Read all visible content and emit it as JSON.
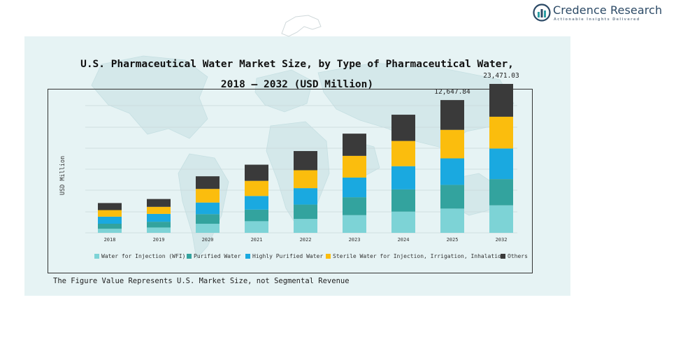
{
  "brand": {
    "name": "Credence Research",
    "tagline": "Actionable Insights Delivered"
  },
  "chart_data": {
    "type": "bar",
    "stacked": true,
    "title_line1": "U.S. Pharmaceutical Water Market Size, by Type of Pharmaceutical Water,",
    "title_line2": "2018 – 2032 (USD Million)",
    "ylabel": "USD Million",
    "xlabel": "",
    "categories": [
      "2018",
      "2019",
      "2020",
      "2021",
      "2022",
      "2023",
      "2024",
      "2025",
      "2032"
    ],
    "series": [
      {
        "name": "Water for Injection (WFI)",
        "color": "#7dd3d6",
        "values": [
          800,
          1050,
          1800,
          2300,
          2750,
          3500,
          4200,
          4800,
          5450
        ]
      },
      {
        "name": "Purified Water",
        "color": "#33a39e",
        "values": [
          1000,
          1150,
          1900,
          2300,
          2850,
          3550,
          4400,
          4700,
          5200
        ]
      },
      {
        "name": "Highly Purified Water",
        "color": "#1aa9e0",
        "values": [
          1400,
          1550,
          2300,
          2700,
          3250,
          3900,
          4600,
          5250,
          6050
        ]
      },
      {
        "name": "Sterile Water for Injection, Irrigation, Inhalation",
        "color": "#fbbd0d",
        "values": [
          1300,
          1400,
          2700,
          3000,
          3550,
          4300,
          5000,
          5650,
          6300
        ]
      },
      {
        "name": "Others",
        "color": "#3a3a3a",
        "values": [
          1400,
          1550,
          2500,
          3200,
          3800,
          4400,
          5200,
          5900,
          6500
        ]
      }
    ],
    "data_labels": [
      {
        "category": "2025",
        "text": "12,647.84"
      },
      {
        "category": "2032",
        "text": "23,471.03"
      }
    ],
    "grid": true,
    "legend_position": "bottom"
  },
  "footnote": "The Figure Value Represents U.S. Market Size, not Segmental Revenue"
}
